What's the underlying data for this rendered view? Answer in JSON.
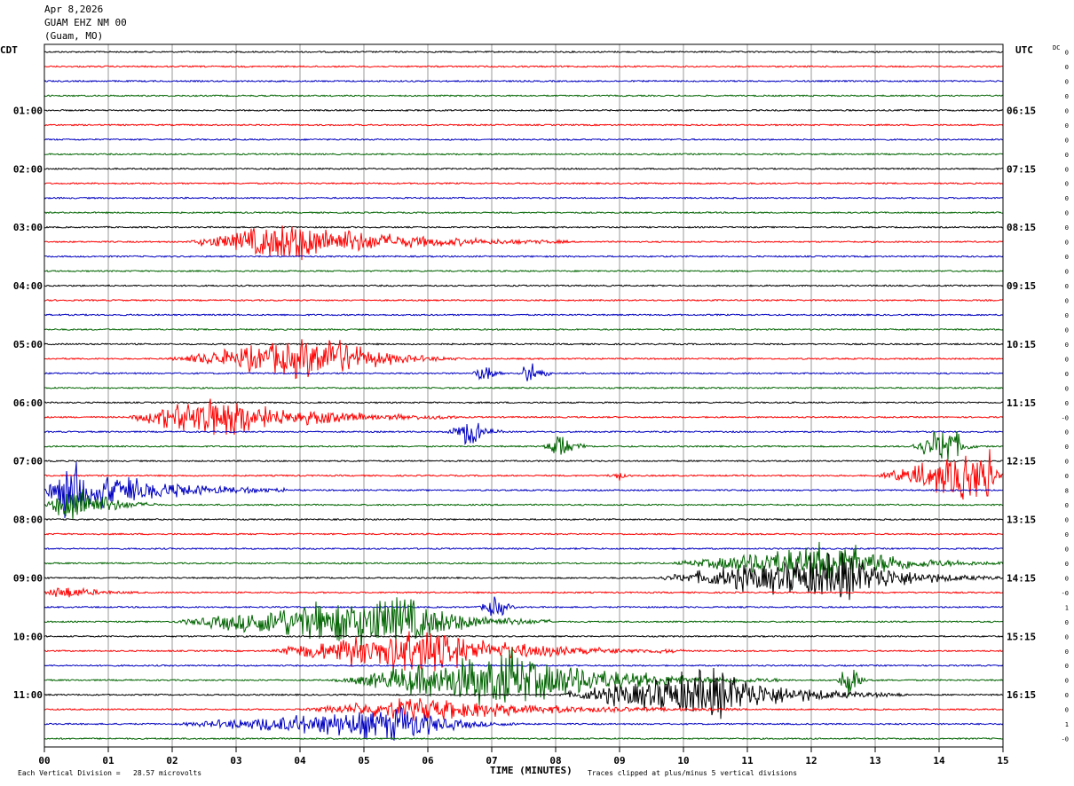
{
  "header": {
    "date": "Apr 8,2026",
    "station": "GUAM EHZ NM 00",
    "location": "(Guam, MO)"
  },
  "left_axis_label": "CDT",
  "right_axis_label": "UTC",
  "dc_label": "DC",
  "footer": {
    "scale_note": "Each Vertical Division =   28.57 microvolts",
    "xlabel": "TIME (MINUTES)",
    "clip_note": "Traces clipped at plus/minus 5 vertical divisions"
  },
  "chart_data": {
    "type": "line",
    "x_ticks": [
      "00",
      "01",
      "02",
      "03",
      "04",
      "05",
      "06",
      "07",
      "08",
      "09",
      "10",
      "11",
      "12",
      "13",
      "14",
      "15"
    ],
    "xlim": [
      0,
      15
    ],
    "left_tick_labels": [
      "01:00",
      "02:00",
      "03:00",
      "04:00",
      "05:00",
      "06:00",
      "07:00",
      "08:00",
      "09:00",
      "10:00",
      "11:00"
    ],
    "right_tick_labels": [
      "06:15",
      "07:15",
      "08:15",
      "09:15",
      "10:15",
      "11:15",
      "12:15",
      "13:15",
      "14:15",
      "15:15",
      "16:15"
    ],
    "trace_count": 48,
    "trace_colors": [
      "#000000",
      "#ff0000",
      "#0000c0",
      "#006400"
    ],
    "dc_offsets": [
      "0",
      "0",
      "0",
      "0",
      "0",
      "0",
      "0",
      "0",
      "0",
      "0",
      "0",
      "0",
      "0",
      "0",
      "0",
      "0",
      "0",
      "0",
      "0",
      "0",
      "0",
      "0",
      "0",
      "0",
      "0",
      "-0",
      "0",
      "0",
      "0",
      "0",
      "8",
      "0",
      "0",
      "0",
      "0",
      "0",
      "0",
      "-0",
      "1",
      "0",
      "0",
      "0",
      "0",
      "0",
      "0",
      "0",
      "1",
      "-0"
    ],
    "events": [
      {
        "trace": 13,
        "start": 2.2,
        "peak": 3.9,
        "end": 8.2,
        "amp": 28
      },
      {
        "trace": 21,
        "start": 1.9,
        "peak": 4.5,
        "end": 6.5,
        "amp": 30
      },
      {
        "trace": 22,
        "start": 6.7,
        "peak": 6.9,
        "end": 7.2,
        "amp": 20
      },
      {
        "trace": 22,
        "start": 7.4,
        "peak": 7.6,
        "end": 8.0,
        "amp": 20
      },
      {
        "trace": 25,
        "start": 1.3,
        "peak": 2.6,
        "end": 6.5,
        "amp": 30
      },
      {
        "trace": 26,
        "start": 6.3,
        "peak": 6.7,
        "end": 7.2,
        "amp": 20
      },
      {
        "trace": 27,
        "start": 7.8,
        "peak": 8.1,
        "end": 8.5,
        "amp": 24
      },
      {
        "trace": 27,
        "start": 13.5,
        "peak": 14.2,
        "end": 14.6,
        "amp": 32
      },
      {
        "trace": 29,
        "start": 13.0,
        "peak": 14.8,
        "end": 15.0,
        "amp": 40
      },
      {
        "trace": 29,
        "start": 8.8,
        "peak": 9.0,
        "end": 9.2,
        "amp": 6
      },
      {
        "trace": 30,
        "start": 0.0,
        "peak": 0.3,
        "end": 3.8,
        "amp": 40
      },
      {
        "trace": 31,
        "start": 0.0,
        "peak": 0.5,
        "end": 1.8,
        "amp": 32
      },
      {
        "trace": 35,
        "start": 9.8,
        "peak": 12.5,
        "end": 15.0,
        "amp": 28
      },
      {
        "trace": 36,
        "start": 9.5,
        "peak": 12.5,
        "end": 15.0,
        "amp": 32
      },
      {
        "trace": 37,
        "start": 0.0,
        "peak": 0.3,
        "end": 1.5,
        "amp": 10
      },
      {
        "trace": 39,
        "start": 2.0,
        "peak": 5.5,
        "end": 8.0,
        "amp": 40
      },
      {
        "trace": 38,
        "start": 6.8,
        "peak": 7.1,
        "end": 7.4,
        "amp": 18
      },
      {
        "trace": 41,
        "start": 3.5,
        "peak": 5.8,
        "end": 10.0,
        "amp": 32
      },
      {
        "trace": 43,
        "start": 4.5,
        "peak": 7.3,
        "end": 11.5,
        "amp": 40
      },
      {
        "trace": 43,
        "start": 12.4,
        "peak": 12.6,
        "end": 13.0,
        "amp": 30
      },
      {
        "trace": 44,
        "start": 8.0,
        "peak": 10.5,
        "end": 13.5,
        "amp": 34
      },
      {
        "trace": 45,
        "start": 4.0,
        "peak": 6.0,
        "end": 11.0,
        "amp": 16
      },
      {
        "trace": 46,
        "start": 2.0,
        "peak": 5.7,
        "end": 7.5,
        "amp": 22
      }
    ]
  }
}
